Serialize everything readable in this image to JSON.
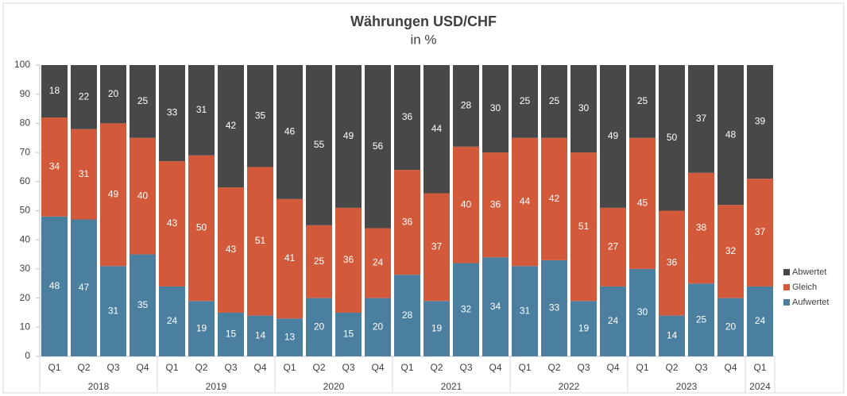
{
  "chart_data": {
    "type": "stacked_bar",
    "title": "Währungen USD/CHF",
    "subtitle": "in %",
    "year_groups": [
      {
        "label": "2018",
        "quarters": [
          "Q1",
          "Q2",
          "Q3",
          "Q4"
        ]
      },
      {
        "label": "2019",
        "quarters": [
          "Q1",
          "Q2",
          "Q3",
          "Q4"
        ]
      },
      {
        "label": "2020",
        "quarters": [
          "Q1",
          "Q2",
          "Q3",
          "Q4"
        ]
      },
      {
        "label": "2021",
        "quarters": [
          "Q1",
          "Q2",
          "Q3",
          "Q4"
        ]
      },
      {
        "label": "2022",
        "quarters": [
          "Q1",
          "Q2",
          "Q3",
          "Q4"
        ]
      },
      {
        "label": "2023",
        "quarters": [
          "Q1",
          "Q2",
          "Q3",
          "Q4"
        ]
      },
      {
        "label": "2024",
        "quarters": [
          "Q1"
        ]
      }
    ],
    "series": [
      {
        "name": "Aufwertet",
        "color": "#4a7fa0",
        "values": [
          48,
          47,
          31,
          35,
          24,
          19,
          15,
          14,
          13,
          20,
          15,
          20,
          28,
          19,
          32,
          34,
          31,
          33,
          19,
          24,
          30,
          14,
          25,
          20,
          24
        ]
      },
      {
        "name": "Gleich",
        "color": "#d2593a",
        "values": [
          34,
          31,
          49,
          40,
          43,
          50,
          43,
          51,
          41,
          25,
          36,
          24,
          36,
          37,
          40,
          36,
          44,
          42,
          51,
          27,
          45,
          36,
          38,
          32,
          37
        ]
      },
      {
        "name": "Abwertet",
        "color": "#484848",
        "values": [
          18,
          22,
          20,
          25,
          33,
          31,
          42,
          35,
          46,
          55,
          49,
          56,
          36,
          44,
          28,
          30,
          25,
          25,
          30,
          49,
          25,
          50,
          37,
          48,
          39
        ]
      }
    ],
    "ylim": [
      0,
      100
    ],
    "yticks": [
      0,
      10,
      20,
      30,
      40,
      50,
      60,
      70,
      80,
      90,
      100
    ],
    "grid": false,
    "legend": "right"
  }
}
